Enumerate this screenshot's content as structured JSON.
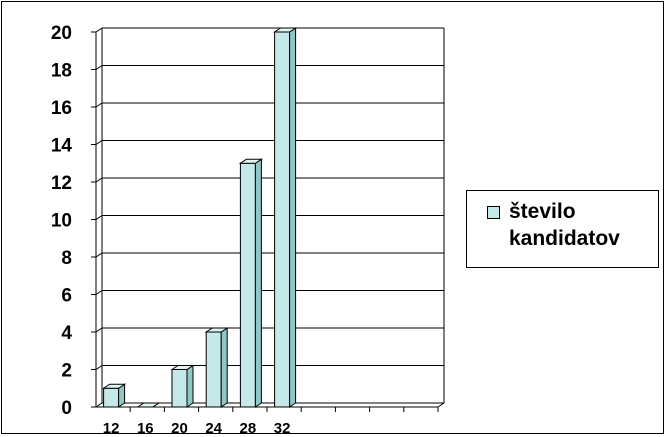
{
  "chart_data": {
    "type": "bar",
    "title": "",
    "xlabel": "",
    "ylabel": "",
    "categories": [
      "12",
      "16",
      "20",
      "24",
      "28",
      "32",
      "",
      "",
      "",
      ""
    ],
    "series": [
      {
        "name": "število kandidatov",
        "values": [
          1,
          0,
          2,
          4,
          13,
          20,
          0,
          0,
          0,
          0
        ]
      }
    ],
    "ylim": [
      0,
      20
    ],
    "yticks": [
      "0",
      "2",
      "4",
      "6",
      "8",
      "10",
      "12",
      "14",
      "16",
      "18",
      "20"
    ],
    "grid": true,
    "legend_position": "right",
    "colors": {
      "bar": "#c5e8e8",
      "bar_side": "#8fc7c7",
      "bar_top": "#e2f5f5",
      "grid": "#000000"
    }
  }
}
